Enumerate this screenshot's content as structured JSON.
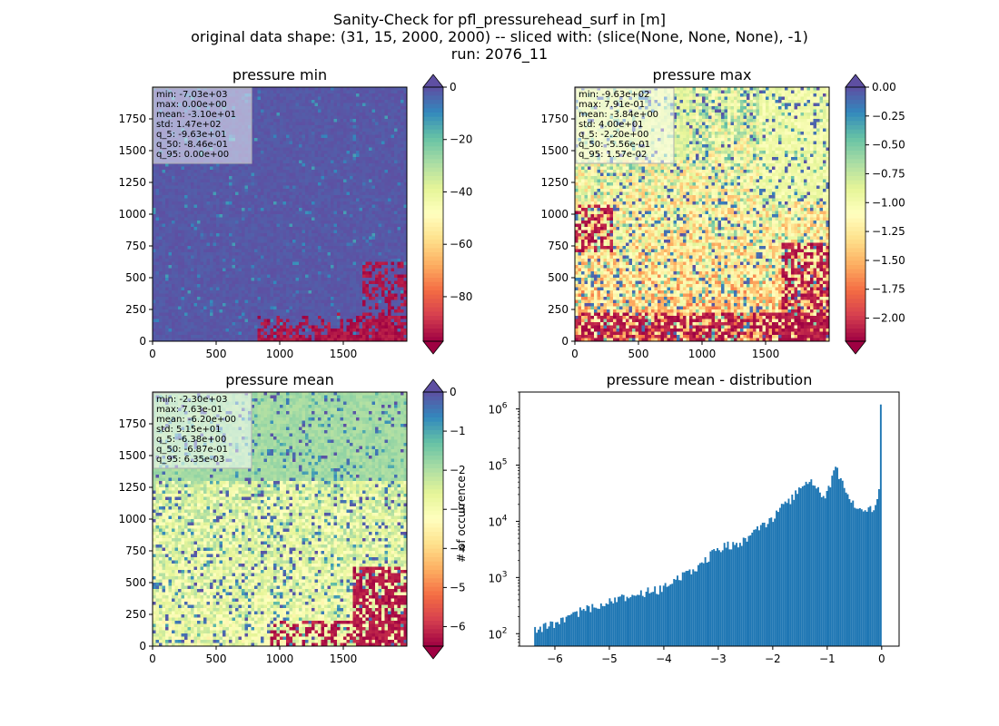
{
  "figure": {
    "title_lines": [
      "Sanity-Check for pfl_pressurehead_surf in [m]",
      "original data shape: (31, 15, 2000, 2000) -- sliced with: (slice(None, None, None), -1)",
      "run: 2076_11"
    ]
  },
  "colors": {
    "spectral": [
      "#9e0142",
      "#d53e4f",
      "#f46d43",
      "#fdae61",
      "#fee08b",
      "#ffffbf",
      "#e6f598",
      "#abdda4",
      "#66c2a5",
      "#3288bd",
      "#5e4fa2"
    ],
    "hist_bar": "#1f77b4"
  },
  "chart_data": [
    {
      "type": "heatmap",
      "title": "pressure min",
      "x_ticks": [
        "0",
        "500",
        "1000",
        "1500"
      ],
      "y_ticks": [
        "0",
        "250",
        "500",
        "750",
        "1000",
        "1250",
        "1500",
        "1750"
      ],
      "xlim": [
        0,
        2000
      ],
      "ylim": [
        0,
        2000
      ],
      "colorbar": {
        "vmin": -97,
        "vmax": 0,
        "ticks": [
          "0",
          "−20",
          "−40",
          "−60",
          "−80"
        ],
        "tick_values": [
          0,
          -20,
          -40,
          -60,
          -80
        ],
        "extend": "both"
      },
      "stats": [
        "min: -7.03e+03",
        "max: 0.00e+00",
        "mean: -3.10e+01",
        "std: 1.47e+02",
        "q_5: -9.63e+01",
        "q_50: -8.46e-01",
        "q_95: 0.00e+00"
      ],
      "pattern": "min"
    },
    {
      "type": "heatmap",
      "title": "pressure max",
      "x_ticks": [
        "0",
        "500",
        "1000",
        "1500"
      ],
      "y_ticks": [
        "0",
        "250",
        "500",
        "750",
        "1000",
        "1250",
        "1500",
        "1750"
      ],
      "xlim": [
        0,
        2000
      ],
      "ylim": [
        0,
        2000
      ],
      "colorbar": {
        "vmin": -2.2,
        "vmax": 0.0,
        "ticks": [
          "0.00",
          "−0.25",
          "−0.50",
          "−0.75",
          "−1.00",
          "−1.25",
          "−1.50",
          "−1.75",
          "−2.00"
        ],
        "tick_values": [
          0,
          -0.25,
          -0.5,
          -0.75,
          -1.0,
          -1.25,
          -1.5,
          -1.75,
          -2.0
        ],
        "extend": "both"
      },
      "stats": [
        "min: -9.63e+02",
        "max: 7.91e-01",
        "mean: -3.84e+00",
        "std: 4.00e+01",
        "q_5: -2.20e+00",
        "q_50: -5.56e-01",
        "q_95: 1.57e-02"
      ],
      "pattern": "max"
    },
    {
      "type": "heatmap",
      "title": "pressure mean",
      "x_ticks": [
        "0",
        "500",
        "1000",
        "1500"
      ],
      "y_ticks": [
        "0",
        "250",
        "500",
        "750",
        "1000",
        "1250",
        "1500",
        "1750"
      ],
      "xlim": [
        0,
        2000
      ],
      "ylim": [
        0,
        2000
      ],
      "colorbar": {
        "vmin": -6.5,
        "vmax": 0.0,
        "ticks": [
          "0",
          "−1",
          "−2",
          "−3",
          "−4",
          "−5",
          "−6"
        ],
        "tick_values": [
          0,
          -1,
          -2,
          -3,
          -4,
          -5,
          -6
        ],
        "extend": "both"
      },
      "stats": [
        "min: -2.30e+03",
        "max: 7.63e-01",
        "mean: -6.20e+00",
        "std: 5.15e+01",
        "q_5: -6.38e+00",
        "q_50: -6.87e-01",
        "q_95: 6.35e-03"
      ],
      "pattern": "mean"
    },
    {
      "type": "bar",
      "title": "pressure mean - distribution",
      "ylabel": "# of occurrence",
      "xlabel": "",
      "x_ticks": [
        "−6",
        "−5",
        "−4",
        "−3",
        "−2",
        "−1",
        "0"
      ],
      "x_tick_values": [
        -6,
        -5,
        -4,
        -3,
        -2,
        -1,
        0
      ],
      "xlim": [
        -6.65,
        0.32
      ],
      "ylim": [
        60,
        2000000
      ],
      "y_scale": "log",
      "y_ticks": [
        {
          "value": 100,
          "base": "10",
          "exp": "2"
        },
        {
          "value": 1000,
          "base": "10",
          "exp": "3"
        },
        {
          "value": 10000,
          "base": "10",
          "exp": "4"
        },
        {
          "value": 100000,
          "base": "10",
          "exp": "5"
        },
        {
          "value": 1000000,
          "base": "10",
          "exp": "6"
        }
      ],
      "bins": [
        [
          -6.38,
          110
        ],
        [
          -5.5,
          260
        ],
        [
          -4.6,
          480
        ],
        [
          -4.0,
          640
        ],
        [
          -3.5,
          1300
        ],
        [
          -3.0,
          3200
        ],
        [
          -2.5,
          4600
        ],
        [
          -2.0,
          12000
        ],
        [
          -1.6,
          30000
        ],
        [
          -1.35,
          55000
        ],
        [
          -1.2,
          38000
        ],
        [
          -1.05,
          24000
        ],
        [
          -0.9,
          60000
        ],
        [
          -0.82,
          90000
        ],
        [
          -0.7,
          40000
        ],
        [
          -0.5,
          18000
        ],
        [
          -0.3,
          15000
        ],
        [
          -0.1,
          20000
        ],
        [
          -0.03,
          60000
        ],
        [
          0.0,
          1200000
        ]
      ],
      "bin_range": [
        -6.38,
        0.0
      ],
      "bin_count": 200
    }
  ]
}
